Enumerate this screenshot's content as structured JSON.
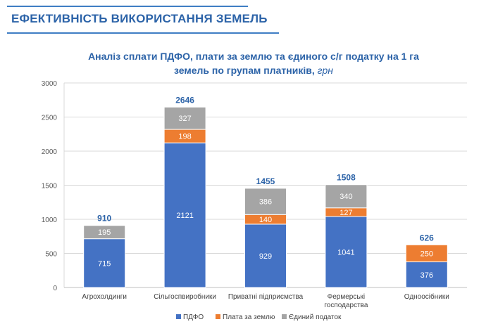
{
  "header": {
    "title": "ЕФЕКТИВНІСТЬ ВИКОРИСТАННЯ  ЗЕМЕЛЬ"
  },
  "chart_data": {
    "type": "bar",
    "stacked": true,
    "title_line1": "Аналіз сплати ПДФО, плати за землю та єдиного с/г податку на 1 га",
    "title_line2": "земель по групам платників,",
    "title_unit": "грн",
    "categories": [
      [
        "Агрохолдинги"
      ],
      [
        "Сільгоспвиробники"
      ],
      [
        "Приватні підприємства"
      ],
      [
        "Фермерські",
        "господарства"
      ],
      [
        "Одноосібники"
      ]
    ],
    "series": [
      {
        "name": "ПДФО",
        "color": "#4472c4",
        "values": [
          715,
          2121,
          929,
          1041,
          376
        ]
      },
      {
        "name": "Плата за землю",
        "color": "#ed7d31",
        "values": [
          0,
          198,
          140,
          127,
          250
        ]
      },
      {
        "name": "Єдиний податок",
        "color": "#a5a5a5",
        "values": [
          195,
          327,
          386,
          340,
          0
        ]
      }
    ],
    "totals": [
      910,
      2646,
      1455,
      1508,
      626
    ],
    "yticks": [
      0,
      500,
      1000,
      1500,
      2000,
      2500,
      3000
    ],
    "ylim": [
      0,
      3000
    ],
    "grid": true,
    "legend": "bottom"
  }
}
